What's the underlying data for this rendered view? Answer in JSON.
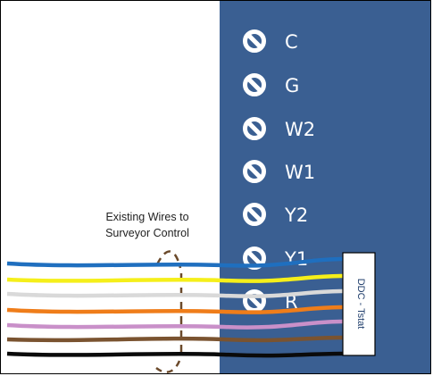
{
  "terminals": [
    {
      "label": "C"
    },
    {
      "label": "G"
    },
    {
      "label": "W2"
    },
    {
      "label": "W1"
    },
    {
      "label": "Y2"
    },
    {
      "label": "Y1"
    },
    {
      "label": "R"
    }
  ],
  "annotation": {
    "line1": "Existing Wires to",
    "line2": "Surveyor Control"
  },
  "connector_label": "DDC - Tstat",
  "wires": [
    {
      "color": "#1f6fbf"
    },
    {
      "color": "#f5ef1a"
    },
    {
      "color": "#d9d9d9"
    },
    {
      "color": "#ef7d1a"
    },
    {
      "color": "#c990c9"
    },
    {
      "color": "#7a5330"
    },
    {
      "color": "#0a0a0a"
    }
  ],
  "colors": {
    "panel": "#3a5f92",
    "screw": "#ffffff",
    "bracket": "#6b4a2b",
    "connector_border": "#000000"
  }
}
